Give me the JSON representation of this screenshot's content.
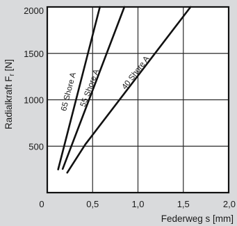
{
  "chart_data": {
    "type": "line",
    "title": "",
    "xlabel": "Federweg s [mm]",
    "ylabel": "Radialkraft Fr [N]",
    "ylabel_main": "Radialkraft F",
    "ylabel_sub": "r",
    "ylabel_unit": " [N]",
    "xlim": [
      0,
      2.0
    ],
    "ylim": [
      0,
      2000
    ],
    "x_ticks": [
      0,
      0.5,
      1.0,
      1.5,
      2.0
    ],
    "x_tick_labels": [
      "0",
      "0,5",
      "1,0",
      "1,5",
      "2,0"
    ],
    "y_ticks": [
      500,
      1000,
      1500,
      2000
    ],
    "y_tick_labels": [
      "500",
      "1000",
      "1500",
      "2000"
    ],
    "grid": true,
    "legend": "none",
    "series": [
      {
        "name": "65 Shore A",
        "x": [
          0.12,
          0.58
        ],
        "y": [
          250,
          2000
        ],
        "color": "#111111"
      },
      {
        "name": "55 Shore A",
        "x": [
          0.17,
          0.85
        ],
        "y": [
          255,
          2000
        ],
        "color": "#111111"
      },
      {
        "name": "40 Shore A",
        "x": [
          0.22,
          0.42,
          1.58
        ],
        "y": [
          215,
          520,
          2000
        ],
        "color": "#111111"
      }
    ]
  }
}
